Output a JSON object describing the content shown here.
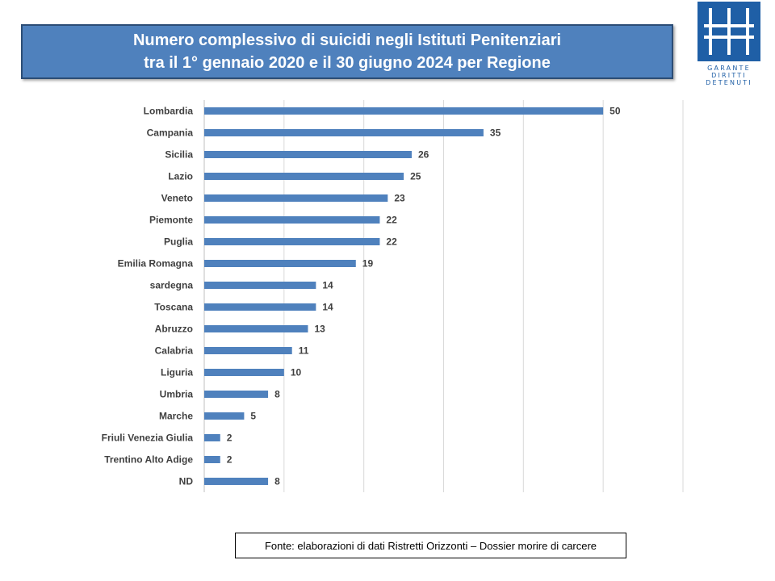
{
  "title": {
    "line1": "Numero complessivo di suicidi  negli Istituti Penitenziari",
    "line2": "tra il 1° gennaio 2020 e il 30 giugno 2024 per Regione"
  },
  "logo": {
    "lines": [
      "GARANTE",
      "DIRITTI",
      "DETENUTI"
    ],
    "color": "#1f5fa6"
  },
  "source": "Fonte: elaborazioni di dati Ristretti Orizzonti – Dossier morire  di carcere",
  "chart_data": {
    "type": "bar",
    "orientation": "horizontal",
    "categories": [
      "Lombardia",
      "Campania",
      "Sicilia",
      "Lazio",
      "Veneto",
      "Piemonte",
      "Puglia",
      "Emilia Romagna",
      "sardegna",
      "Toscana",
      "Abruzzo",
      "Calabria",
      "Liguria",
      "Umbria",
      "Marche",
      "Friuli Venezia Giulia",
      "Trentino Alto Adige",
      "ND"
    ],
    "values": [
      50,
      35,
      26,
      25,
      23,
      22,
      22,
      19,
      14,
      14,
      13,
      11,
      10,
      8,
      5,
      2,
      2,
      8
    ],
    "xlim": [
      0,
      60
    ],
    "grid": true,
    "data_labels": true,
    "bar_color": "#4f81bd"
  }
}
